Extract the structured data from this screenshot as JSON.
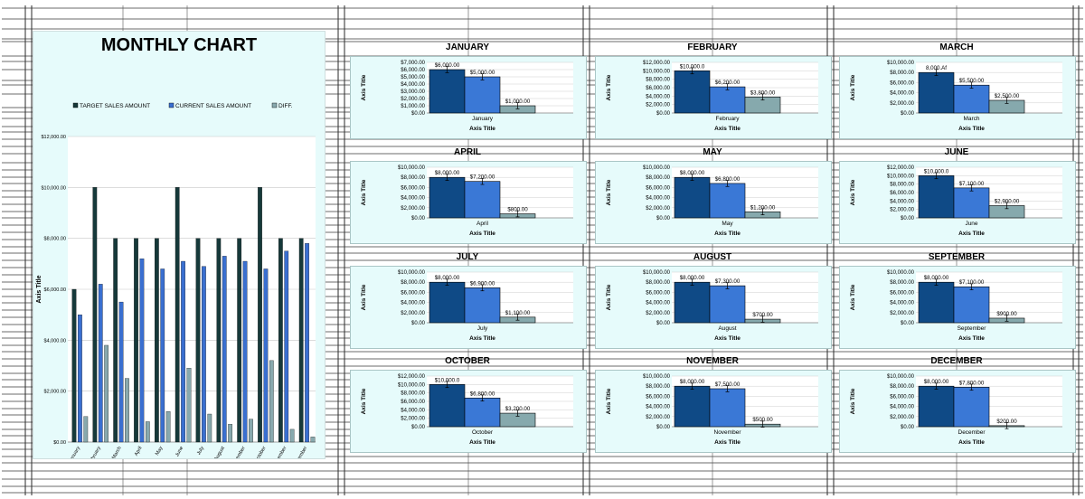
{
  "main_title": "MONTHLY CHART",
  "colors": {
    "target": "#0f4a86",
    "current": "#3a78d6",
    "diff": "#86a9ad",
    "big_target": "#16393a",
    "big_current": "#3a6fd0",
    "big_diff": "#88a9ae",
    "panel_bg": "#e6fbfb"
  },
  "chart_data": [
    {
      "type": "bar",
      "title": "MONTHLY CHART",
      "xlabel": "Axis Title",
      "ylabel": "Axis Title",
      "legend_position": "top",
      "grid": true,
      "ylim": [
        0,
        12000
      ],
      "y_ticks": [
        "$0.00",
        "$2,000.00",
        "$4,000.00",
        "$6,000.00",
        "$8,000.00",
        "$10,000.00",
        "$12,000.00"
      ],
      "categories": [
        "January",
        "February",
        "March",
        "April",
        "May",
        "June",
        "July",
        "August",
        "September",
        "October",
        "November",
        "December"
      ],
      "series": [
        {
          "name": "TARGET SALES AMOUNT",
          "values": [
            6000,
            10000,
            8000,
            8000,
            8000,
            10000,
            8000,
            8000,
            8000,
            10000,
            8000,
            8000
          ]
        },
        {
          "name": "CURRENT SALES AMOUNT",
          "values": [
            5000,
            6200,
            5500,
            7200,
            6800,
            7100,
            6900,
            7300,
            7100,
            6800,
            7500,
            7800
          ]
        },
        {
          "name": "DIFF.",
          "values": [
            1000,
            3800,
            2500,
            800,
            1200,
            2900,
            1100,
            700,
            900,
            3200,
            500,
            200
          ]
        }
      ]
    },
    {
      "type": "bar",
      "title": "JANUARY",
      "category": "January",
      "xlabel": "Axis Title",
      "ylabel": "Axis Title",
      "values": [
        6000,
        5000,
        1000
      ],
      "labels": [
        "$6,000.00",
        "$5,000.00",
        "$1,000.00"
      ],
      "y_ticks": [
        "$0.00",
        "$1,000.00",
        "$2,000.00",
        "$3,000.00",
        "$4,000.00",
        "$5,000.00",
        "$6,000.00",
        "$7,000.00"
      ],
      "ylim": [
        0,
        7000
      ],
      "error_bars": true
    },
    {
      "type": "bar",
      "title": "FEBRUARY",
      "category": "February",
      "xlabel": "Axis Title",
      "ylabel": "Axis Title",
      "values": [
        10000,
        6200,
        3800
      ],
      "labels": [
        "$10,000.0",
        "$6,200.00",
        "$3,800.00"
      ],
      "y_ticks": [
        "$0.00",
        "$2,000.00",
        "$4,000.00",
        "$6,000.00",
        "$8,000.00",
        "$10,000.00",
        "$12,000.00"
      ],
      "ylim": [
        0,
        12000
      ],
      "error_bars": true
    },
    {
      "type": "bar",
      "title": "MARCH",
      "category": "March",
      "xlabel": "Axis Title",
      "ylabel": "Axis Title",
      "values": [
        8000,
        5500,
        2500
      ],
      "labels": [
        "8,000.Af",
        "$5,500.00",
        "$2,500.00"
      ],
      "y_ticks": [
        "$0.00",
        "$2,000.00",
        "$4,000.00",
        "$6,000.00",
        "$8,000.00",
        "$10,000.00"
      ],
      "ylim": [
        0,
        10000
      ],
      "error_bars": true
    },
    {
      "type": "bar",
      "title": "APRIL",
      "category": "April",
      "xlabel": "Axis Title",
      "ylabel": "Axis Title",
      "values": [
        8000,
        7200,
        800
      ],
      "labels": [
        "$8,000.00",
        "$7,200.00",
        "$800.00"
      ],
      "y_ticks": [
        "$0.00",
        "$2,000.00",
        "$4,000.00",
        "$6,000.00",
        "$8,000.00",
        "$10,000.00"
      ],
      "ylim": [
        0,
        10000
      ],
      "error_bars": true
    },
    {
      "type": "bar",
      "title": "MAY",
      "category": "May",
      "xlabel": "Axis Title",
      "ylabel": "Axis Title",
      "values": [
        8000,
        6800,
        1200
      ],
      "labels": [
        "$8,000.00",
        "$6,800.00",
        "$1,200.00"
      ],
      "y_ticks": [
        "$0.00",
        "$2,000.00",
        "$4,000.00",
        "$6,000.00",
        "$8,000.00",
        "$10,000.00"
      ],
      "ylim": [
        0,
        10000
      ],
      "error_bars": true
    },
    {
      "type": "bar",
      "title": "JUNE",
      "category": "June",
      "xlabel": "Axis Title",
      "ylabel": "Axis Title",
      "values": [
        10000,
        7100,
        2900
      ],
      "labels": [
        "$10,000.0",
        "$7,100.00",
        "$2,900.00"
      ],
      "y_ticks": [
        "$0.00",
        "$2,000.00",
        "$4,000.00",
        "$6,000.00",
        "$8,000.00",
        "$10,000.00",
        "$12,000.00"
      ],
      "ylim": [
        0,
        12000
      ],
      "error_bars": true
    },
    {
      "type": "bar",
      "title": "JULY",
      "category": "July",
      "xlabel": "Axis Title",
      "ylabel": "Axis Title",
      "values": [
        8000,
        6900,
        1100
      ],
      "labels": [
        "$8,000.00",
        "$6,900.00",
        "$1,100.00"
      ],
      "y_ticks": [
        "$0.00",
        "$2,000.00",
        "$4,000.00",
        "$6,000.00",
        "$8,000.00",
        "$10,000.00"
      ],
      "ylim": [
        0,
        10000
      ],
      "error_bars": true
    },
    {
      "type": "bar",
      "title": "AUGUST",
      "category": "August",
      "xlabel": "Axis Title",
      "ylabel": "Axis Title",
      "values": [
        8000,
        7300,
        700
      ],
      "labels": [
        "$8,000.00",
        "$7,300.00",
        "$700.00"
      ],
      "y_ticks": [
        "$0.00",
        "$2,000.00",
        "$4,000.00",
        "$6,000.00",
        "$8,000.00",
        "$10,000.00"
      ],
      "ylim": [
        0,
        10000
      ],
      "error_bars": true
    },
    {
      "type": "bar",
      "title": "SEPTEMBER",
      "category": "September",
      "xlabel": "Axis Title",
      "ylabel": "Axis Title",
      "values": [
        8000,
        7100,
        900
      ],
      "labels": [
        "$8,000.00",
        "$7,100.00",
        "$900.00"
      ],
      "y_ticks": [
        "$0.00",
        "$2,000.00",
        "$4,000.00",
        "$6,000.00",
        "$8,000.00",
        "$10,000.00"
      ],
      "ylim": [
        0,
        10000
      ],
      "error_bars": true
    },
    {
      "type": "bar",
      "title": "OCTOBER",
      "category": "October",
      "xlabel": "Axis Title",
      "ylabel": "Axis Title",
      "values": [
        10000,
        6800,
        3200
      ],
      "labels": [
        "$10,000.0",
        "$6,800.00",
        "$3,200.00"
      ],
      "y_ticks": [
        "$0.00",
        "$2,000.00",
        "$4,000.00",
        "$6,000.00",
        "$8,000.00",
        "$10,000.00",
        "$12,000.00"
      ],
      "ylim": [
        0,
        12000
      ],
      "error_bars": true
    },
    {
      "type": "bar",
      "title": "NOVEMBER",
      "category": "November",
      "xlabel": "Axis Title",
      "ylabel": "Axis Title",
      "values": [
        8000,
        7500,
        500
      ],
      "labels": [
        "$8,000.00",
        "$7,500.00",
        "$500.00"
      ],
      "y_ticks": [
        "$0.00",
        "$2,000.00",
        "$4,000.00",
        "$6,000.00",
        "$8,000.00",
        "$10,000.00"
      ],
      "ylim": [
        0,
        10000
      ],
      "error_bars": true
    },
    {
      "type": "bar",
      "title": "DECEMBER",
      "category": "December",
      "xlabel": "Axis Title",
      "ylabel": "Axis Title",
      "values": [
        8000,
        7800,
        200
      ],
      "labels": [
        "$8,000.00",
        "$7,800.00",
        "$200.00"
      ],
      "y_ticks": [
        "$0.00",
        "$2,000.00",
        "$4,000.00",
        "$6,000.00",
        "$8,000.00",
        "$10,000.00"
      ],
      "ylim": [
        0,
        10000
      ],
      "error_bars": true
    }
  ]
}
